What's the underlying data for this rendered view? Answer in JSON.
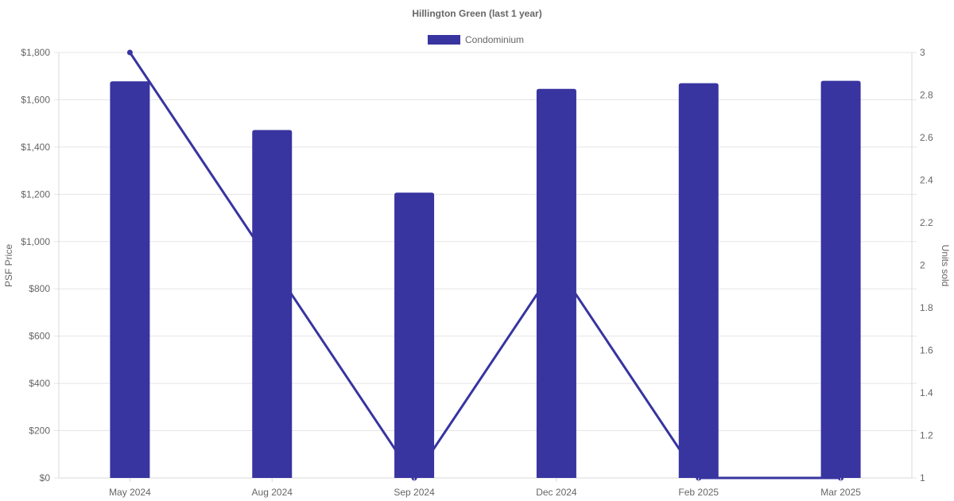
{
  "chart_data": {
    "type": "bar",
    "title": "Hillington Green (last 1 year)",
    "categories": [
      "May 2024",
      "Aug 2024",
      "Sep 2024",
      "Dec 2024",
      "Feb 2025",
      "Mar 2025"
    ],
    "series": [
      {
        "name": "Condominium",
        "kind": "bar",
        "axis": "left",
        "values": [
          1678,
          1472,
          1207,
          1646,
          1670,
          1680
        ]
      },
      {
        "kind": "line",
        "axis": "right",
        "values": [
          3,
          2,
          1,
          2,
          1,
          1
        ]
      }
    ],
    "ylabel": "PSF Price",
    "y2label": "Units sold",
    "ylim": [
      0,
      1800
    ],
    "y2lim": [
      1,
      3
    ],
    "y_ticks": [
      "$0",
      "$200",
      "$400",
      "$600",
      "$800",
      "$1,000",
      "$1,200",
      "$1,400",
      "$1,600",
      "$1,800"
    ],
    "y2_ticks": [
      "1",
      "1.2",
      "1.4",
      "1.6",
      "1.8",
      "2",
      "2.2",
      "2.4",
      "2.6",
      "2.8",
      "3"
    ],
    "legend": {
      "position": "top",
      "label": "Condominium"
    },
    "grid": true,
    "colors": {
      "series": "#3834a0",
      "grid": "#e5e5e5",
      "text": "#666666"
    }
  }
}
